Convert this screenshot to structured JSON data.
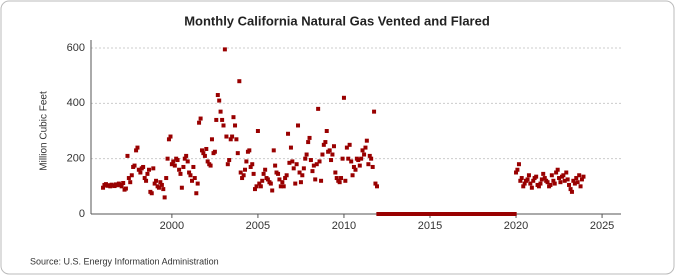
{
  "chart_data": {
    "type": "scatter",
    "title": "Monthly California Natural Gas Vented and Flared",
    "y_label": "Million Cubic Feet",
    "source": "Source: U.S. Energy Information Administration",
    "color": "#990000",
    "grid": true,
    "xlim": [
      1995.3,
      2026.1
    ],
    "xticks": [
      2000,
      2005,
      2010,
      2015,
      2020,
      2025
    ],
    "ylim": [
      0,
      600
    ],
    "yticks": [
      0,
      200,
      400,
      600
    ],
    "x": [
      1996,
      1996.08,
      1996.17,
      1996.25,
      1996.33,
      1996.42,
      1996.5,
      1996.58,
      1996.67,
      1996.75,
      1996.83,
      1996.92,
      1997,
      1997.08,
      1997.17,
      1997.25,
      1997.33,
      1997.42,
      1997.5,
      1997.58,
      1997.67,
      1997.75,
      1997.83,
      1997.92,
      1998,
      1998.08,
      1998.17,
      1998.25,
      1998.33,
      1998.42,
      1998.5,
      1998.58,
      1998.67,
      1998.75,
      1998.83,
      1998.92,
      1999,
      1999.08,
      1999.17,
      1999.25,
      1999.33,
      1999.42,
      1999.5,
      1999.58,
      1999.67,
      1999.75,
      1999.83,
      1999.92,
      2000,
      2000.08,
      2000.17,
      2000.25,
      2000.33,
      2000.42,
      2000.5,
      2000.58,
      2000.67,
      2000.75,
      2000.83,
      2000.92,
      2001,
      2001.08,
      2001.17,
      2001.25,
      2001.33,
      2001.42,
      2001.5,
      2001.58,
      2001.67,
      2001.75,
      2001.83,
      2001.92,
      2002,
      2002.08,
      2002.17,
      2002.25,
      2002.33,
      2002.42,
      2002.5,
      2002.58,
      2002.67,
      2002.75,
      2002.83,
      2002.92,
      2003,
      2003.08,
      2003.17,
      2003.25,
      2003.33,
      2003.42,
      2003.5,
      2003.58,
      2003.67,
      2003.75,
      2003.83,
      2003.92,
      2004,
      2004.08,
      2004.17,
      2004.25,
      2004.33,
      2004.42,
      2004.5,
      2004.58,
      2004.67,
      2004.75,
      2004.83,
      2004.92,
      2005,
      2005.08,
      2005.17,
      2005.25,
      2005.33,
      2005.42,
      2005.5,
      2005.58,
      2005.67,
      2005.75,
      2005.83,
      2005.92,
      2006,
      2006.08,
      2006.17,
      2006.25,
      2006.33,
      2006.42,
      2006.5,
      2006.58,
      2006.67,
      2006.75,
      2006.83,
      2006.92,
      2007,
      2007.08,
      2007.17,
      2007.25,
      2007.33,
      2007.42,
      2007.5,
      2007.58,
      2007.67,
      2007.75,
      2007.83,
      2007.92,
      2008,
      2008.08,
      2008.17,
      2008.25,
      2008.33,
      2008.42,
      2008.5,
      2008.58,
      2008.67,
      2008.75,
      2008.83,
      2008.92,
      2009,
      2009.08,
      2009.17,
      2009.25,
      2009.33,
      2009.42,
      2009.5,
      2009.58,
      2009.67,
      2009.75,
      2009.83,
      2009.92,
      2010,
      2010.08,
      2010.17,
      2010.25,
      2010.33,
      2010.42,
      2010.5,
      2010.58,
      2010.67,
      2010.75,
      2010.83,
      2010.92,
      2011,
      2011.08,
      2011.17,
      2011.25,
      2011.33,
      2011.42,
      2011.5,
      2011.58,
      2011.67,
      2011.75,
      2011.83,
      2011.92,
      2012,
      2012.08,
      2012.17,
      2012.25,
      2012.33,
      2012.42,
      2012.5,
      2012.58,
      2012.67,
      2012.75,
      2012.83,
      2012.92,
      2013,
      2013.08,
      2013.17,
      2013.25,
      2013.33,
      2013.42,
      2013.5,
      2013.58,
      2013.67,
      2013.75,
      2013.83,
      2013.92,
      2014,
      2014.08,
      2014.17,
      2014.25,
      2014.33,
      2014.42,
      2014.5,
      2014.58,
      2014.67,
      2014.75,
      2014.83,
      2014.92,
      2015,
      2015.08,
      2015.17,
      2015.25,
      2015.33,
      2015.42,
      2015.5,
      2015.58,
      2015.67,
      2015.75,
      2015.83,
      2015.92,
      2016,
      2016.08,
      2016.17,
      2016.25,
      2016.33,
      2016.42,
      2016.5,
      2016.58,
      2016.67,
      2016.75,
      2016.83,
      2016.92,
      2017,
      2017.08,
      2017.17,
      2017.25,
      2017.33,
      2017.42,
      2017.5,
      2017.58,
      2017.67,
      2017.75,
      2017.83,
      2017.92,
      2018,
      2018.08,
      2018.17,
      2018.25,
      2018.33,
      2018.42,
      2018.5,
      2018.58,
      2018.67,
      2018.75,
      2018.83,
      2018.92,
      2019,
      2019.08,
      2019.17,
      2019.25,
      2019.33,
      2019.42,
      2019.5,
      2019.58,
      2019.67,
      2019.75,
      2019.83,
      2019.92,
      2020,
      2020.08,
      2020.17,
      2020.25,
      2020.33,
      2020.42,
      2020.5,
      2020.58,
      2020.67,
      2020.75,
      2020.83,
      2020.92,
      2021,
      2021.08,
      2021.17,
      2021.25,
      2021.33,
      2021.42,
      2021.5,
      2021.58,
      2021.67,
      2021.75,
      2021.83,
      2021.92,
      2022,
      2022.08,
      2022.17,
      2022.25,
      2022.33,
      2022.42,
      2022.5,
      2022.58,
      2022.67,
      2022.75,
      2022.83,
      2022.92,
      2023,
      2023.08,
      2023.17,
      2023.25,
      2023.33,
      2023.42,
      2023.5,
      2023.58,
      2023.67,
      2023.75,
      2023.83,
      2023.92
    ],
    "values": [
      95,
      105,
      108,
      102,
      104,
      100,
      106,
      103,
      101,
      107,
      104,
      110,
      105,
      100,
      112,
      88,
      92,
      210,
      130,
      115,
      140,
      170,
      175,
      230,
      240,
      160,
      150,
      165,
      170,
      130,
      120,
      145,
      160,
      80,
      75,
      165,
      110,
      120,
      100,
      95,
      115,
      105,
      90,
      60,
      130,
      200,
      270,
      280,
      180,
      190,
      175,
      200,
      195,
      160,
      145,
      95,
      170,
      200,
      210,
      190,
      150,
      140,
      120,
      170,
      130,
      75,
      110,
      330,
      345,
      230,
      220,
      210,
      235,
      190,
      180,
      175,
      270,
      220,
      225,
      340,
      430,
      410,
      370,
      340,
      320,
      595,
      280,
      180,
      195,
      270,
      280,
      350,
      320,
      270,
      220,
      480,
      150,
      130,
      140,
      160,
      190,
      225,
      230,
      170,
      180,
      145,
      90,
      100,
      300,
      110,
      100,
      120,
      145,
      160,
      130,
      125,
      115,
      110,
      85,
      230,
      175,
      150,
      145,
      125,
      100,
      115,
      100,
      130,
      140,
      290,
      185,
      240,
      190,
      165,
      110,
      180,
      320,
      150,
      115,
      140,
      165,
      200,
      215,
      260,
      275,
      195,
      155,
      175,
      125,
      180,
      380,
      190,
      120,
      215,
      250,
      260,
      300,
      225,
      230,
      195,
      215,
      245,
      150,
      130,
      120,
      115,
      130,
      200,
      420,
      120,
      240,
      200,
      250,
      190,
      140,
      170,
      160,
      200,
      195,
      175,
      200,
      230,
      215,
      240,
      265,
      180,
      210,
      200,
      170,
      370,
      110,
      100,
      0,
      0,
      0,
      0,
      0,
      0,
      0,
      0,
      0,
      0,
      0,
      0,
      0,
      0,
      0,
      0,
      0,
      0,
      0,
      0,
      0,
      0,
      0,
      0,
      0,
      0,
      0,
      0,
      0,
      0,
      0,
      0,
      0,
      0,
      0,
      0,
      0,
      0,
      0,
      0,
      0,
      0,
      0,
      0,
      0,
      0,
      0,
      0,
      0,
      0,
      0,
      0,
      0,
      0,
      0,
      0,
      0,
      0,
      0,
      0,
      0,
      0,
      0,
      0,
      0,
      0,
      0,
      0,
      0,
      0,
      0,
      0,
      0,
      0,
      0,
      0,
      0,
      0,
      0,
      0,
      0,
      0,
      0,
      0,
      0,
      0,
      0,
      0,
      0,
      0,
      0,
      0,
      0,
      0,
      0,
      0,
      150,
      160,
      180,
      120,
      130,
      100,
      110,
      120,
      125,
      140,
      110,
      95,
      120,
      130,
      135,
      105,
      100,
      110,
      125,
      145,
      130,
      120,
      115,
      100,
      105,
      140,
      120,
      110,
      150,
      160,
      130,
      115,
      135,
      140,
      120,
      150,
      125,
      105,
      90,
      80,
      120,
      110,
      130,
      115,
      140,
      100,
      125,
      135
    ]
  }
}
